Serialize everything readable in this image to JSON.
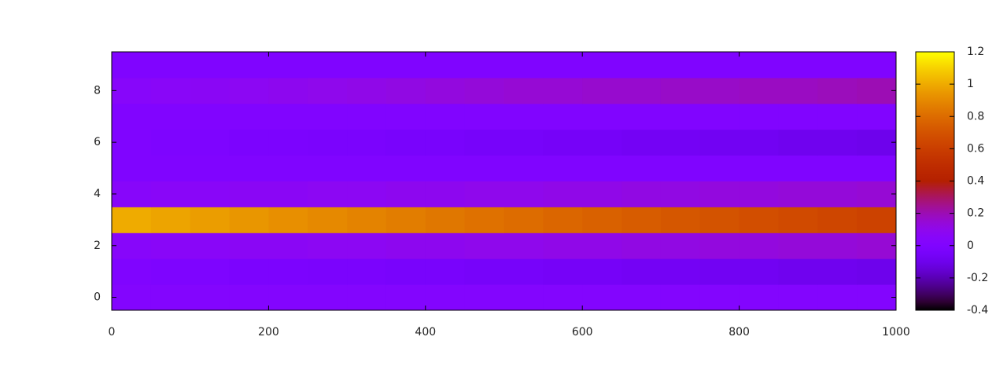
{
  "chart_data": {
    "type": "heatmap",
    "colormap": "gnuplot",
    "bins": [
      0,
      50,
      100,
      150,
      200,
      250,
      300,
      350,
      400,
      450,
      500,
      550,
      600,
      650,
      700,
      750,
      800,
      850,
      900,
      950,
      1000
    ],
    "y": [
      0,
      1,
      2,
      3,
      4,
      5,
      6,
      7,
      8,
      9
    ],
    "z": [
      [
        0.02,
        0.02,
        0.02,
        0.02,
        0.02,
        0.02,
        0.02,
        0.02,
        0.02,
        0.02,
        0.02,
        0.02,
        0.02,
        0.02,
        0.02,
        0.02,
        0.02,
        0.02,
        0.02,
        0.02
      ],
      [
        0,
        -0.01,
        -0.01,
        -0.02,
        -0.02,
        -0.03,
        -0.03,
        -0.04,
        -0.04,
        -0.05,
        -0.05,
        -0.06,
        -0.06,
        -0.07,
        -0.07,
        -0.08,
        -0.08,
        -0.09,
        -0.09,
        -0.1
      ],
      [
        0.05,
        0.06,
        0.06,
        0.07,
        0.07,
        0.08,
        0.08,
        0.09,
        0.09,
        0.1,
        0.1,
        0.11,
        0.11,
        0.12,
        0.12,
        0.13,
        0.13,
        0.14,
        0.14,
        0.15
      ],
      [
        1.0,
        0.98,
        0.96,
        0.94,
        0.92,
        0.9,
        0.88,
        0.86,
        0.84,
        0.82,
        0.8,
        0.78,
        0.76,
        0.74,
        0.72,
        0.7,
        0.68,
        0.66,
        0.64,
        0.62
      ],
      [
        0.05,
        0.06,
        0.06,
        0.07,
        0.07,
        0.08,
        0.08,
        0.09,
        0.09,
        0.1,
        0.1,
        0.11,
        0.11,
        0.12,
        0.12,
        0.13,
        0.13,
        0.14,
        0.14,
        0.15
      ],
      [
        0,
        0,
        0,
        0,
        0,
        0,
        0,
        0,
        0,
        0,
        0,
        0,
        0,
        0,
        0,
        0,
        0,
        0,
        0,
        0
      ],
      [
        0,
        -0.01,
        -0.01,
        -0.02,
        -0.02,
        -0.03,
        -0.03,
        -0.04,
        -0.04,
        -0.05,
        -0.05,
        -0.06,
        -0.06,
        -0.07,
        -0.07,
        -0.08,
        -0.08,
        -0.09,
        -0.09,
        -0.1
      ],
      [
        0.01,
        0.01,
        0.01,
        0.01,
        0.01,
        0.01,
        0.01,
        0.01,
        0.01,
        0.01,
        0.01,
        0.01,
        0.01,
        0.01,
        0.01,
        0.01,
        0.01,
        0.01,
        0.01,
        0.01
      ],
      [
        0.05,
        0.06,
        0.07,
        0.08,
        0.09,
        0.1,
        0.11,
        0.12,
        0.13,
        0.14,
        0.15,
        0.15,
        0.16,
        0.16,
        0.17,
        0.17,
        0.18,
        0.18,
        0.19,
        0.2
      ],
      [
        0,
        0,
        0,
        0,
        0,
        0,
        0,
        0,
        0,
        0,
        0,
        0,
        0,
        0,
        0,
        0,
        0,
        0,
        0,
        0
      ]
    ],
    "xlim": [
      0,
      1000
    ],
    "xticks": [
      0,
      200,
      400,
      600,
      800,
      1000
    ],
    "ylim": [
      -0.5,
      9.5
    ],
    "yticks": [
      0,
      2,
      4,
      6,
      8
    ],
    "cblim": [
      -0.4,
      1.2
    ],
    "cbticks": [
      -0.4,
      -0.2,
      0,
      0.2,
      0.4,
      0.6,
      0.8,
      1,
      1.2
    ]
  }
}
